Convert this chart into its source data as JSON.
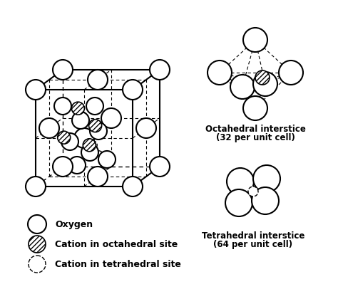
{
  "bg_color": "#ffffff",
  "octa_label_line1": "Octahedral interstice",
  "octa_label_line2": "(32 per unit cell)",
  "tetra_label_line1": "Tetrahedral interstice",
  "tetra_label_line2": "(64 per unit cell)",
  "legend": [
    {
      "label": "Oxygen",
      "type": "oxygen"
    },
    {
      "label": "Cation in octahedral site",
      "type": "octahedral"
    },
    {
      "label": "Cation in tetrahedral site",
      "type": "tetrahedral"
    }
  ],
  "font_size": 8.5,
  "font_weight": "bold"
}
